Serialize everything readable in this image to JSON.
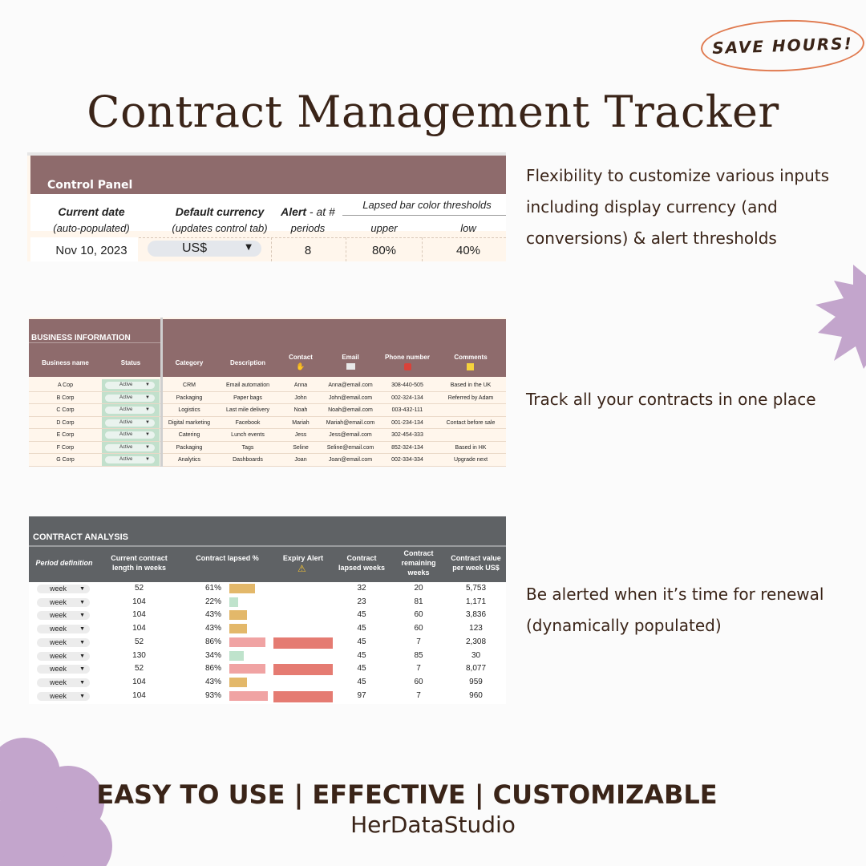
{
  "badge": "SAVE HOURS!",
  "title": "Contract Management Tracker",
  "descriptions": [
    [
      "Flexibility to customize various inputs",
      "including display currency (and",
      "conversions) & alert thresholds"
    ],
    [
      "Track all your contracts in one place"
    ],
    [
      "Be alerted when it’s time for renewal",
      "(dynamically populated)"
    ]
  ],
  "control_panel": {
    "title": "Control Panel",
    "current_date_label": "Current date",
    "current_date_sub": "(auto-populated)",
    "current_date_value": "Nov 10, 2023",
    "currency_label": "Default currency",
    "currency_sub": "(updates control tab)",
    "currency_value": "US$",
    "alert_label": "Alert",
    "alert_label_rest": " - at #",
    "alert_sub": "periods",
    "alert_value": "8",
    "thresholds_label": "Lapsed bar color thresholds",
    "upper_label": "upper",
    "upper_value": "80%",
    "low_label": "low",
    "low_value": "40%"
  },
  "business_info": {
    "title": "BUSINESS INFORMATION",
    "headers": [
      "Business name",
      "Status",
      "Category",
      "Description",
      "Contact",
      "Email",
      "Phone number",
      "Comments"
    ],
    "rows": [
      [
        "A Cop",
        "Active",
        "CRM",
        "Email automation",
        "Anna",
        "Anna@email.com",
        "308-440-505",
        "Based in the UK"
      ],
      [
        "B Corp",
        "Active",
        "Packaging",
        "Paper bags",
        "John",
        "John@email.com",
        "002-324-134",
        "Referred by Adam"
      ],
      [
        "C Corp",
        "Active",
        "Logistics",
        "Last mile delivery",
        "Noah",
        "Noah@email.com",
        "003-432-111",
        ""
      ],
      [
        "D Corp",
        "Active",
        "Digital marketing",
        "Facebook",
        "Mariah",
        "Mariah@email.com",
        "001-234-134",
        "Contact before sale"
      ],
      [
        "E Corp",
        "Active",
        "Catering",
        "Lunch events",
        "Jess",
        "Jess@email.com",
        "302-454-333",
        ""
      ],
      [
        "F Corp",
        "Active",
        "Packaging",
        "Tags",
        "Seline",
        "Seline@email.com",
        "852-324-134",
        "Based in HK"
      ],
      [
        "G Corp",
        "Active",
        "Analytics",
        "Dashboards",
        "Joan",
        "Joan@email.com",
        "002-334-334",
        "Upgrade next"
      ]
    ]
  },
  "contract_analysis": {
    "title": "CONTRACT ANALYSIS",
    "headers": [
      "Period definition",
      "Current contract length in weeks",
      "Contract lapsed %",
      "Expiry Alert",
      "Contract lapsed weeks",
      "Contract remaining weeks",
      "Contract value per week US$"
    ],
    "rows": [
      {
        "period": "week",
        "length": "52",
        "lapsed_pct": "61%",
        "lapsed": 0.61,
        "alert": false,
        "lapsed_weeks": "32",
        "remaining": "20",
        "value": "5,753"
      },
      {
        "period": "week",
        "length": "104",
        "lapsed_pct": "22%",
        "lapsed": 0.22,
        "alert": false,
        "lapsed_weeks": "23",
        "remaining": "81",
        "value": "1,171"
      },
      {
        "period": "week",
        "length": "104",
        "lapsed_pct": "43%",
        "lapsed": 0.43,
        "alert": false,
        "lapsed_weeks": "45",
        "remaining": "60",
        "value": "3,836"
      },
      {
        "period": "week",
        "length": "104",
        "lapsed_pct": "43%",
        "lapsed": 0.43,
        "alert": false,
        "lapsed_weeks": "45",
        "remaining": "60",
        "value": "123"
      },
      {
        "period": "week",
        "length": "52",
        "lapsed_pct": "86%",
        "lapsed": 0.86,
        "alert": true,
        "lapsed_weeks": "45",
        "remaining": "7",
        "value": "2,308"
      },
      {
        "period": "week",
        "length": "130",
        "lapsed_pct": "34%",
        "lapsed": 0.34,
        "alert": false,
        "lapsed_weeks": "45",
        "remaining": "85",
        "value": "30"
      },
      {
        "period": "week",
        "length": "52",
        "lapsed_pct": "86%",
        "lapsed": 0.86,
        "alert": true,
        "lapsed_weeks": "45",
        "remaining": "7",
        "value": "8,077"
      },
      {
        "period": "week",
        "length": "104",
        "lapsed_pct": "43%",
        "lapsed": 0.43,
        "alert": false,
        "lapsed_weeks": "45",
        "remaining": "60",
        "value": "959"
      },
      {
        "period": "week",
        "length": "104",
        "lapsed_pct": "93%",
        "lapsed": 0.93,
        "alert": true,
        "lapsed_weeks": "97",
        "remaining": "7",
        "value": "960"
      }
    ]
  },
  "bar_colors": {
    "low": "#6bbf8c",
    "mid": "#e3b86a",
    "high": "#f0a3a3",
    "alert": "#e57b72"
  },
  "tagline": "EASY TO USE | EFFECTIVE | CUSTOMIZABLE",
  "brand": "HerDataStudio",
  "decor_color": "#c3a5cc"
}
